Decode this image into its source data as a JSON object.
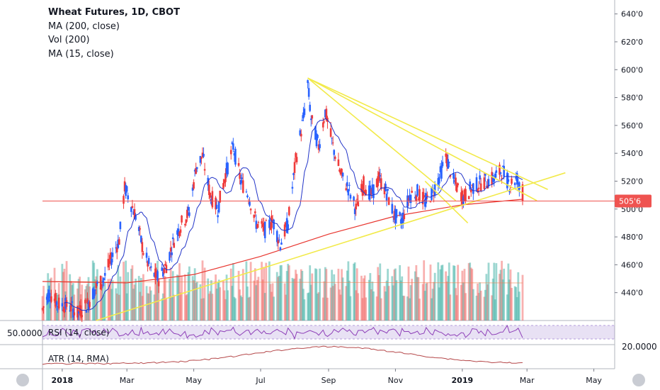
{
  "legend": {
    "symbol": "Wheat Futures, 1D, CBOT",
    "ma200": "MA (200, close)",
    "vol": "Vol (200)",
    "ma15": "MA (15, close)"
  },
  "rsi_pane": {
    "label": "RSI (14, close)",
    "left_value": "50.0000"
  },
  "atr_pane": {
    "label": "ATR (14, RMA)",
    "right_value": "20.0000"
  },
  "price_tag": {
    "value": "505'6",
    "color": "#ef5350"
  },
  "colors": {
    "up": "#2962ff",
    "down": "#ef3b3b",
    "ma15": "#2234c8",
    "ma200": "#e8352e",
    "trend": "#f2ea4a",
    "rsi_line": "#8e3fb8",
    "atr_line": "#b5484a"
  },
  "chart_data": {
    "type": "candlestick",
    "title": "Wheat Futures, 1D, CBOT",
    "x_tick_labels": [
      "2018",
      "Mar",
      "May",
      "Jul",
      "Sep",
      "Nov",
      "2019",
      "Mar",
      "May"
    ],
    "y_tick_labels": [
      "640'0",
      "620'0",
      "600'0",
      "580'0",
      "560'0",
      "540'0",
      "520'0",
      "500'0",
      "480'0",
      "460'0",
      "440'0"
    ],
    "ylim": [
      420,
      650
    ],
    "last_price": 505.75,
    "price_path": [
      [
        "2017-12-14",
        428
      ],
      [
        "2017-12-20",
        440
      ],
      [
        "2017-12-28",
        432
      ],
      [
        "2018-01-08",
        430
      ],
      [
        "2018-01-15",
        425
      ],
      [
        "2018-01-24",
        432
      ],
      [
        "2018-02-01",
        444
      ],
      [
        "2018-02-08",
        450
      ],
      [
        "2018-02-15",
        465
      ],
      [
        "2018-02-22",
        478
      ],
      [
        "2018-02-27",
        515
      ],
      [
        "2018-03-02",
        510
      ],
      [
        "2018-03-09",
        495
      ],
      [
        "2018-03-16",
        470
      ],
      [
        "2018-03-23",
        455
      ],
      [
        "2018-03-30",
        450
      ],
      [
        "2018-04-06",
        460
      ],
      [
        "2018-04-13",
        478
      ],
      [
        "2018-04-20",
        490
      ],
      [
        "2018-04-27",
        498
      ],
      [
        "2018-05-03",
        530
      ],
      [
        "2018-05-09",
        538
      ],
      [
        "2018-05-16",
        510
      ],
      [
        "2018-05-23",
        500
      ],
      [
        "2018-05-30",
        525
      ],
      [
        "2018-06-06",
        545
      ],
      [
        "2018-06-13",
        520
      ],
      [
        "2018-06-20",
        510
      ],
      [
        "2018-06-27",
        490
      ],
      [
        "2018-07-05",
        485
      ],
      [
        "2018-07-12",
        492
      ],
      [
        "2018-07-19",
        475
      ],
      [
        "2018-07-26",
        490
      ],
      [
        "2018-08-02",
        535
      ],
      [
        "2018-08-09",
        565
      ],
      [
        "2018-08-13",
        590
      ],
      [
        "2018-08-16",
        565
      ],
      [
        "2018-08-23",
        545
      ],
      [
        "2018-08-29",
        570
      ],
      [
        "2018-09-05",
        545
      ],
      [
        "2018-09-12",
        525
      ],
      [
        "2018-09-19",
        515
      ],
      [
        "2018-09-26",
        500
      ],
      [
        "2018-10-03",
        518
      ],
      [
        "2018-10-10",
        510
      ],
      [
        "2018-10-17",
        522
      ],
      [
        "2018-10-24",
        512
      ],
      [
        "2018-10-31",
        495
      ],
      [
        "2018-11-07",
        492
      ],
      [
        "2018-11-14",
        510
      ],
      [
        "2018-11-21",
        512
      ],
      [
        "2018-11-28",
        505
      ],
      [
        "2018-12-05",
        512
      ],
      [
        "2018-12-12",
        525
      ],
      [
        "2018-12-17",
        538
      ],
      [
        "2018-12-24",
        520
      ],
      [
        "2019-01-02",
        508
      ],
      [
        "2019-01-09",
        515
      ],
      [
        "2019-01-16",
        518
      ],
      [
        "2019-01-23",
        520
      ],
      [
        "2019-01-30",
        522
      ],
      [
        "2019-02-06",
        528
      ],
      [
        "2019-02-13",
        518
      ],
      [
        "2019-02-20",
        522
      ],
      [
        "2019-02-25",
        505.75
      ]
    ],
    "ma200_path": [
      [
        "2017-12-14",
        448
      ],
      [
        "2018-03-01",
        447
      ],
      [
        "2018-05-01",
        453
      ],
      [
        "2018-07-01",
        466
      ],
      [
        "2018-09-01",
        482
      ],
      [
        "2018-11-01",
        495
      ],
      [
        "2019-01-01",
        503
      ],
      [
        "2019-02-25",
        507
      ]
    ],
    "trendlines": [
      {
        "from": [
          "2018-02-01",
          420
        ],
        "to": [
          "2019-04-05",
          526
        ]
      },
      {
        "from": [
          "2018-08-13",
          594
        ],
        "to": [
          "2019-03-20",
          514
        ]
      },
      {
        "from": [
          "2018-08-13",
          594
        ],
        "to": [
          "2019-03-10",
          506
        ]
      },
      {
        "from": [
          "2018-08-13",
          594
        ],
        "to": [
          "2018-12-26",
          506
        ]
      },
      {
        "from": [
          "2018-11-28",
          520
        ],
        "to": [
          "2019-01-06",
          490
        ]
      }
    ],
    "volume_shown": true,
    "rsi_shown": true,
    "atr_shown": true
  }
}
